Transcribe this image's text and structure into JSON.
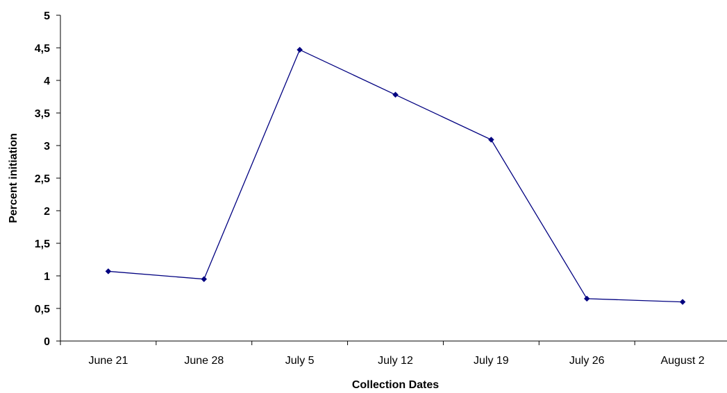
{
  "chart_data": {
    "type": "line",
    "title": "",
    "xlabel": "Collection Dates",
    "ylabel": "Percent initiation",
    "categories": [
      "June 21",
      "June 28",
      "July 5",
      "July 12",
      "July 19",
      "July 26",
      "August 2"
    ],
    "y_tick_labels": [
      "0",
      "0,5",
      "1",
      "1,5",
      "2",
      "2,5",
      "3",
      "3,5",
      "4",
      "4,5",
      "5"
    ],
    "ylim": [
      0,
      5
    ],
    "y_tick_step": 0.5,
    "grid": false,
    "legend": "none",
    "series": [
      {
        "values": [
          1.07,
          0.95,
          4.47,
          3.78,
          3.09,
          0.65,
          0.6
        ],
        "color": "#000080",
        "marker": "diamond"
      }
    ]
  }
}
